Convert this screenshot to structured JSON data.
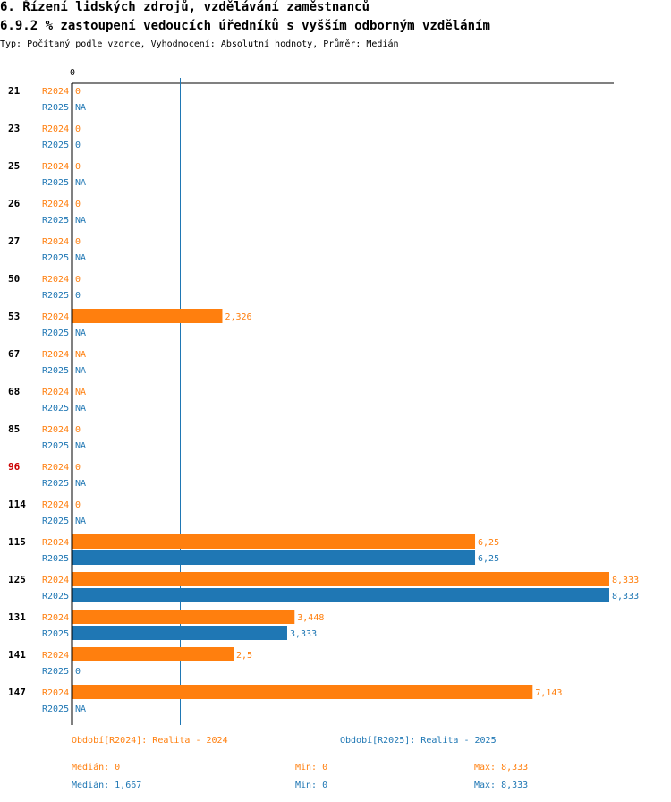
{
  "chart_data": {
    "type": "bar",
    "title": "6. Řízení lidských zdrojů, vzdělávání zaměstnanců",
    "subtitle": "6.9.2 % zastoupení vedoucích úředníků s vyšším odborným vzděláním",
    "description": "Typ: Počítaný podle vzorce, Vyhodnocení: Absolutní hodnoty, Průměr: Medián",
    "x_tick_label": "0",
    "xlim": [
      0,
      8.333
    ],
    "median_line_value": 1.667,
    "categories": [
      "21",
      "23",
      "25",
      "26",
      "27",
      "50",
      "53",
      "67",
      "68",
      "85",
      "96",
      "114",
      "115",
      "125",
      "131",
      "141",
      "147"
    ],
    "highlight_category": "96",
    "colors": {
      "R2024": "#ff7f0e",
      "R2025": "#1f77b4",
      "highlight": "#cc0000",
      "median_line": "#1f77b4"
    },
    "series": [
      {
        "name": "R2024",
        "values": [
          0,
          0,
          0,
          0,
          0,
          0,
          2.326,
          null,
          null,
          0,
          0,
          0,
          6.25,
          8.333,
          3.448,
          2.5,
          7.143
        ],
        "labels": [
          "0",
          "0",
          "0",
          "0",
          "0",
          "0",
          "2,326",
          "NA",
          "NA",
          "0",
          "0",
          "0",
          "6,25",
          "8,333",
          "3,448",
          "2,5",
          "7,143"
        ]
      },
      {
        "name": "R2025",
        "values": [
          null,
          0,
          null,
          null,
          null,
          0,
          null,
          null,
          null,
          null,
          null,
          null,
          6.25,
          8.333,
          3.333,
          0,
          null
        ],
        "labels": [
          "NA",
          "0",
          "NA",
          "NA",
          "NA",
          "0",
          "NA",
          "NA",
          "NA",
          "NA",
          "NA",
          "NA",
          "6,25",
          "8,333",
          "3,333",
          "0",
          "NA"
        ]
      }
    ]
  },
  "legend": {
    "r2024": "Období[R2024]: Realita - 2024",
    "r2025": "Období[R2025]: Realita - 2025"
  },
  "stats": {
    "r2024": {
      "median": "Medián: 0",
      "min": "Min: 0",
      "max": "Max: 8,333"
    },
    "r2025": {
      "median": "Medián: 1,667",
      "min": "Min: 0",
      "max": "Max: 8,333"
    }
  }
}
